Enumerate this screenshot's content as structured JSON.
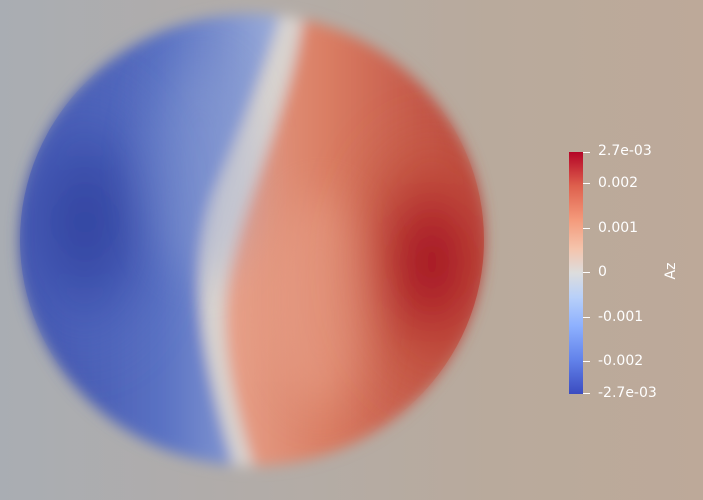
{
  "scalar_field": "Az",
  "colormap": {
    "name": "Cool to Warm",
    "min_color": "#3b4cc0",
    "mid_color": "#dddddd",
    "max_color": "#b40426"
  },
  "colorbar": {
    "title": "Az",
    "range": [
      -0.0027,
      0.0027
    ],
    "ticks": [
      {
        "value": 0.0027,
        "label": "2.7e-03"
      },
      {
        "value": 0.002,
        "label": "0.002"
      },
      {
        "value": 0.001,
        "label": "0.001"
      },
      {
        "value": 0,
        "label": "0"
      },
      {
        "value": -0.001,
        "label": "-0.001"
      },
      {
        "value": -0.002,
        "label": "-0.002"
      },
      {
        "value": -0.0027,
        "label": "-2.7e-03"
      }
    ]
  },
  "background_color": "#b9ada1"
}
